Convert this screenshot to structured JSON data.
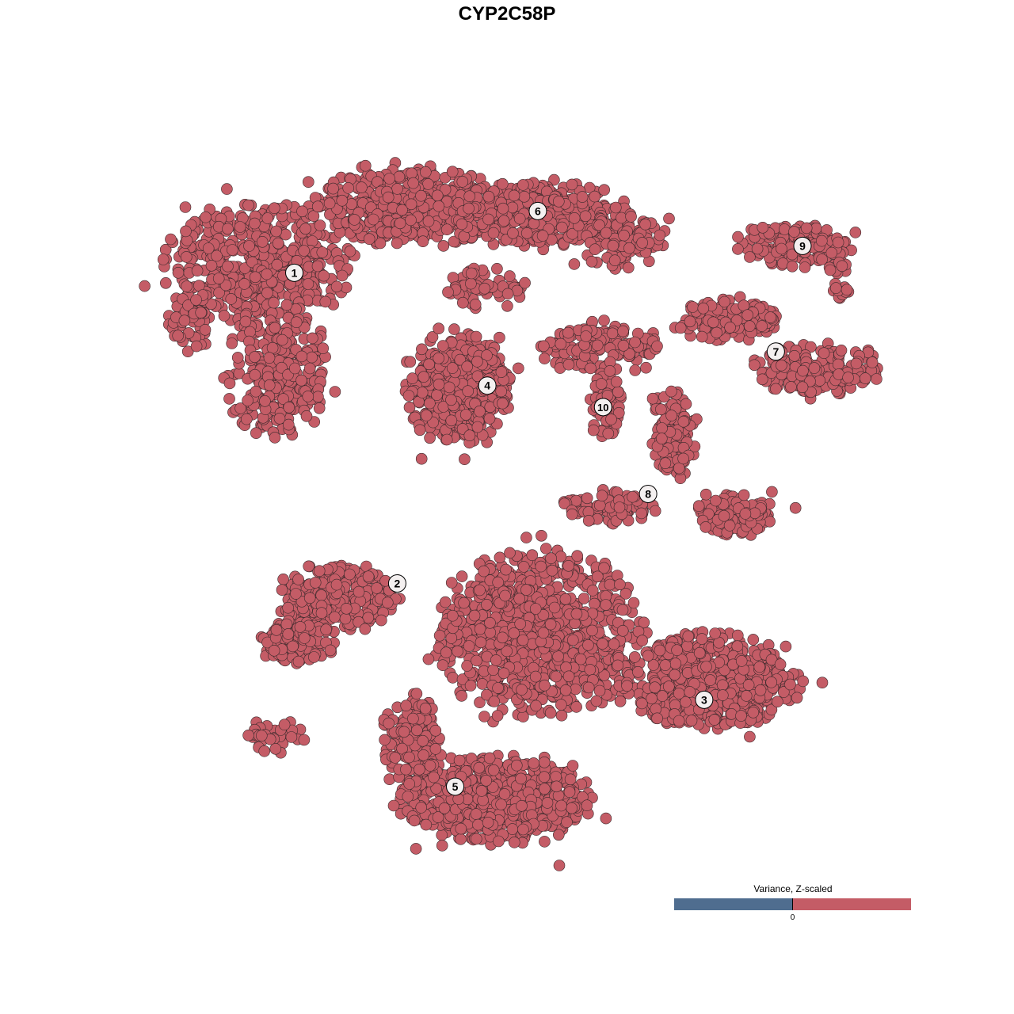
{
  "chart_data": {
    "type": "scatter",
    "title": "CYP2C58P",
    "xlabel": "",
    "ylabel": "",
    "grid": false,
    "point_color": "#c45c66",
    "point_outline": "#3a2a2c",
    "clusters": [
      {
        "label": "1",
        "x": -25.3,
        "y": 25.9
      },
      {
        "label": "6",
        "x": 1.2,
        "y": 32.8
      },
      {
        "label": "9",
        "x": 30.0,
        "y": 28.9
      },
      {
        "label": "7",
        "x": 27.1,
        "y": 17.1
      },
      {
        "label": "4",
        "x": -4.3,
        "y": 13.3
      },
      {
        "label": "10",
        "x": 8.3,
        "y": 10.9
      },
      {
        "label": "8",
        "x": 13.2,
        "y": 1.2
      },
      {
        "label": "2",
        "x": -14.1,
        "y": -8.8
      },
      {
        "label": "3",
        "x": 19.3,
        "y": -21.8
      },
      {
        "label": "5",
        "x": -7.8,
        "y": -31.5
      }
    ],
    "legend": {
      "title": "Variance, Z-scaled",
      "tick_label": "0",
      "low_color": "#4f6d8f",
      "high_color": "#c45c66",
      "placement": "bottom-right"
    }
  }
}
